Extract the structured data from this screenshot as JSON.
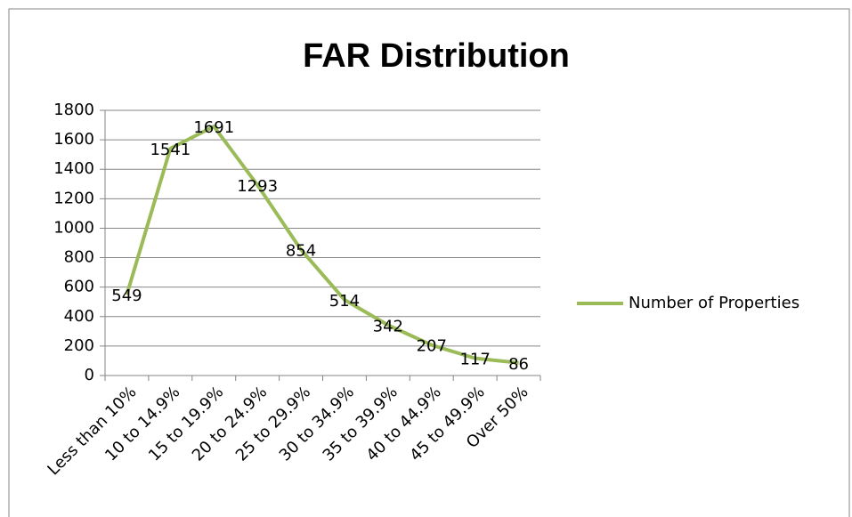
{
  "chart_data": {
    "type": "line",
    "title": "FAR Distribution",
    "categories": [
      "Less than 10%",
      "10 to 14.9%",
      "15 to 19.9%",
      "20 to 24.9%",
      "25 to 29.9%",
      "30 to 34.9%",
      "35 to 39.9%",
      "40 to 44.9%",
      "45 to 49.9%",
      "Over 50%"
    ],
    "series": [
      {
        "name": "Number of Properties",
        "color": "#9bbb59",
        "values": [
          549,
          1541,
          1691,
          1293,
          854,
          514,
          342,
          207,
          117,
          86
        ]
      }
    ],
    "ylim": [
      0,
      1800
    ],
    "yticks": [
      0,
      200,
      400,
      600,
      800,
      1000,
      1200,
      1400,
      1600,
      1800
    ],
    "grid": true,
    "legend": "right",
    "data_labels": true
  }
}
